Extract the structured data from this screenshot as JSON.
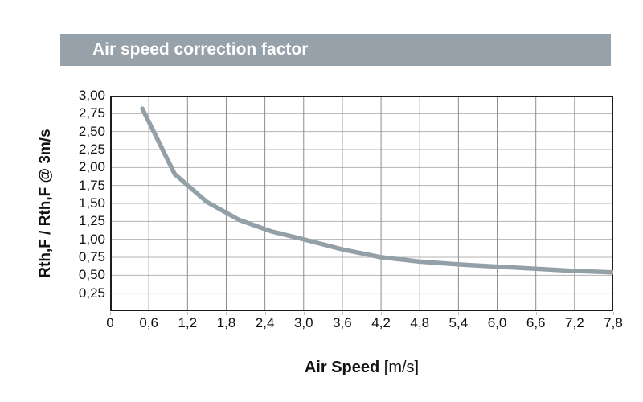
{
  "header": {
    "title": "Air speed correction factor"
  },
  "chart_data": {
    "type": "line",
    "title": "Air speed correction factor",
    "xlabel": "Air Speed",
    "xlabel_unit": "[m/s]",
    "ylabel": "Rth,F / Rth,F @ 3m/s",
    "xlim": [
      0,
      7.8
    ],
    "ylim": [
      0,
      3.0
    ],
    "grid": true,
    "legend_position": "none",
    "x_tick_values": [
      0,
      0.6,
      1.2,
      1.8,
      2.4,
      3.0,
      3.6,
      4.2,
      4.8,
      5.4,
      6.0,
      6.6,
      7.2,
      7.8
    ],
    "x_tick_labels": [
      "0",
      "0,6",
      "1,2",
      "1,8",
      "2,4",
      "3,0",
      "3,6",
      "4,2",
      "4,8",
      "5,4",
      "6,0",
      "6,6",
      "7,2",
      "7,8"
    ],
    "y_tick_values": [
      0.25,
      0.5,
      0.75,
      1.0,
      1.25,
      1.5,
      1.75,
      2.0,
      2.25,
      2.5,
      2.75,
      3.0
    ],
    "y_tick_labels": [
      "0,25",
      "0,50",
      "0,75",
      "1,00",
      "1,25",
      "1,50",
      "1,75",
      "2,00",
      "2,25",
      "2,50",
      "2,75",
      "3,00"
    ],
    "series": [
      {
        "name": "air-speed-correction-factor",
        "x": [
          0.5,
          1.0,
          1.5,
          2.0,
          2.5,
          3.0,
          3.6,
          4.2,
          4.8,
          5.4,
          6.0,
          6.6,
          7.2,
          7.8
        ],
        "y": [
          2.82,
          1.91,
          1.52,
          1.27,
          1.11,
          1.0,
          0.86,
          0.75,
          0.69,
          0.65,
          0.62,
          0.59,
          0.56,
          0.54
        ]
      }
    ]
  },
  "colors": {
    "titlebar_bg": "#96a1a9",
    "titlebar_text": "#ffffff",
    "curve": "#94a0a8",
    "frame": "#1c1c1c",
    "grid_horizontal": "#b3b3b3",
    "grid_vertical": "#8d8d8d",
    "text": "#111111",
    "tick": "#c0c0c0"
  }
}
